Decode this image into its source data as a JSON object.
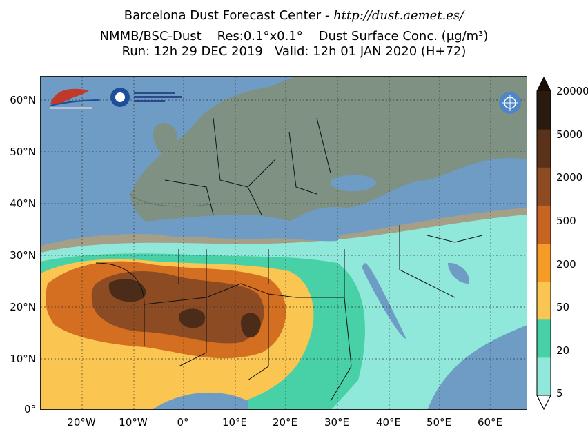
{
  "header": {
    "line1_prefix": "Barcelona Dust Forecast Center - ",
    "line1_url": "http://dust.aemet.es/",
    "line2": "NMMB/BSC-Dust    Res:0.1°x0.1°    Dust Surface Conc. (µg/m³)",
    "line3": "Run: 12h 29 DEC 2019   Valid: 12h 01 JAN 2020 (H+72)"
  },
  "map": {
    "lat_labels": [
      "60°N",
      "50°N",
      "40°N",
      "30°N",
      "20°N",
      "10°N",
      "0°"
    ],
    "lon_labels": [
      "20°W",
      "10°W",
      "0°",
      "10°E",
      "20°E",
      "30°E",
      "40°E",
      "50°E",
      "60°E"
    ],
    "colors": {
      "sea": "#6f9cc4",
      "land_north": "#7e9183",
      "land_south": "#a59f87"
    }
  },
  "legend": {
    "labels": [
      "5",
      "20",
      "50",
      "200",
      "500",
      "2000",
      "5000",
      "20000"
    ],
    "colors": [
      "#8fe8d9",
      "#48d1a6",
      "#fbc552",
      "#f59b27",
      "#c86421",
      "#8c4b23",
      "#5a3219",
      "#2a1a10"
    ]
  }
}
